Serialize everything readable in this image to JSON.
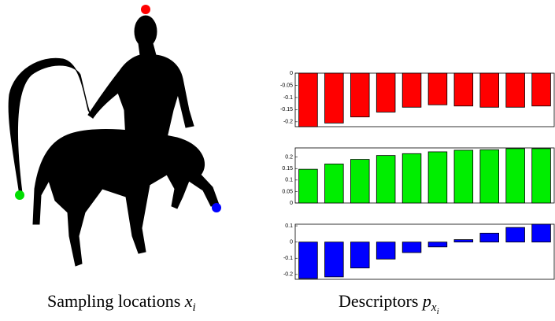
{
  "chart_data": [
    {
      "type": "bar",
      "color": "#ff0000",
      "values": [
        -0.22,
        -0.205,
        -0.18,
        -0.16,
        -0.14,
        -0.13,
        -0.135,
        -0.14,
        -0.14,
        -0.135
      ],
      "ylim": [
        -0.22,
        0
      ],
      "yticks": [
        0,
        -0.05,
        -0.1,
        -0.15,
        -0.2
      ]
    },
    {
      "type": "bar",
      "color": "#00ee00",
      "values": [
        0.147,
        0.17,
        0.19,
        0.207,
        0.215,
        0.223,
        0.23,
        0.232,
        0.237,
        0.237
      ],
      "ylim": [
        0,
        0.24
      ],
      "yticks": [
        0,
        0.05,
        0.1,
        0.15,
        0.2
      ]
    },
    {
      "type": "bar",
      "color": "#0000ff",
      "values": [
        -0.225,
        -0.215,
        -0.16,
        -0.105,
        -0.065,
        -0.03,
        0.015,
        0.055,
        0.09,
        0.11
      ],
      "ylim": [
        -0.23,
        0.11
      ],
      "yticks": [
        -0.2,
        -0.1,
        0,
        0.1
      ]
    }
  ],
  "captions": [
    {
      "text": "Sampling locations ",
      "math": "x",
      "sub": "i"
    },
    {
      "text": "Descriptors ",
      "math": "p",
      "sub": "x",
      "subsub": "i"
    }
  ]
}
